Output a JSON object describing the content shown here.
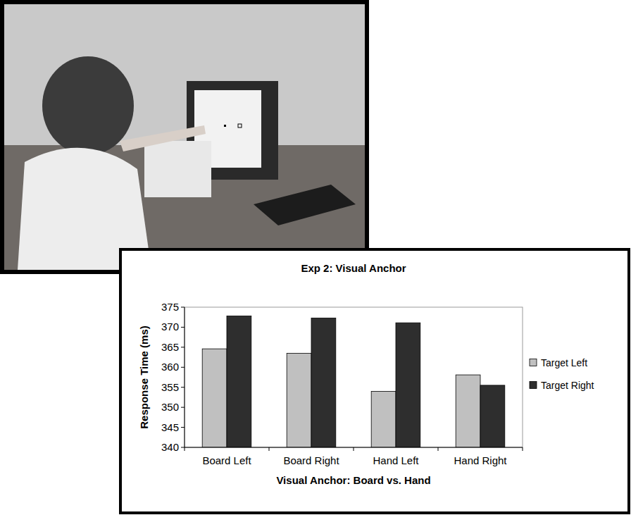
{
  "chart_data": {
    "type": "bar",
    "title": "Exp 2: Visual Anchor",
    "x_label": "Visual Anchor: Board vs. Hand",
    "y_label": "Response Time (ms)",
    "categories": [
      "Board Left",
      "Board Right",
      "Hand Left",
      "Hand Right"
    ],
    "series": [
      {
        "name": "Target Left",
        "color": "#c0c0c0",
        "values": [
          364.6,
          363.5,
          354.0,
          358.1
        ]
      },
      {
        "name": "Target Right",
        "color": "#2e2e2e",
        "values": [
          372.8,
          372.3,
          371.1,
          355.5
        ]
      }
    ],
    "ylim": [
      340,
      375
    ],
    "yticks": [
      340,
      345,
      350,
      355,
      360,
      365,
      370,
      375
    ],
    "grid": false,
    "legend": "right"
  }
}
